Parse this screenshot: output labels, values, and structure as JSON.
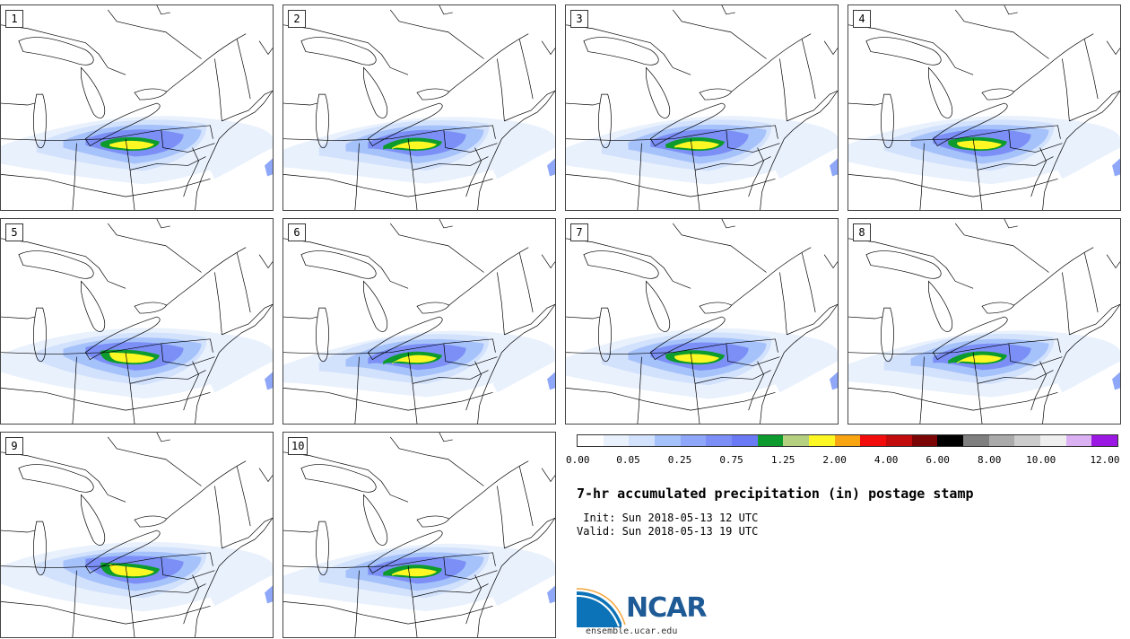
{
  "stamps": [
    {
      "label": "1",
      "bulge": 1.0,
      "shift": 0
    },
    {
      "label": "2",
      "bulge": 0.9,
      "shift": 4
    },
    {
      "label": "3",
      "bulge": 1.05,
      "shift": 2
    },
    {
      "label": "4",
      "bulge": 1.0,
      "shift": -2
    },
    {
      "label": "5",
      "bulge": 1.15,
      "shift": -6
    },
    {
      "label": "6",
      "bulge": 0.85,
      "shift": 6
    },
    {
      "label": "7",
      "bulge": 1.2,
      "shift": -2
    },
    {
      "label": "8",
      "bulge": 0.9,
      "shift": 5
    },
    {
      "label": "9",
      "bulge": 1.0,
      "shift": -8
    },
    {
      "label": "10",
      "bulge": 0.95,
      "shift": 3
    }
  ],
  "colorbar": {
    "colors": [
      "#ffffff",
      "#e9f1fd",
      "#d2e1fc",
      "#a6c2fa",
      "#8ea7f8",
      "#7b8ff6",
      "#6a7af4",
      "#0c9b2c",
      "#b5d07f",
      "#fdf723",
      "#f9a411",
      "#f20c0c",
      "#c20b0b",
      "#7b0505",
      "#000000",
      "#7f7f7f",
      "#aaaaaa",
      "#cccccc",
      "#efefef",
      "#dcb1f4",
      "#9b18e2"
    ],
    "tick_labels": [
      "0.00",
      "0.05",
      "0.25",
      "0.75",
      "1.25",
      "2.00",
      "4.00",
      "6.00",
      "8.00",
      "10.00",
      "12.00"
    ]
  },
  "title": "7-hr accumulated precipitation (in) postage stamp",
  "init_line": " Init: Sun 2018-05-13 12 UTC",
  "valid_line": "Valid: Sun 2018-05-13 19 UTC",
  "logo_text": "NCAR",
  "site": "ensemble.ucar.edu"
}
